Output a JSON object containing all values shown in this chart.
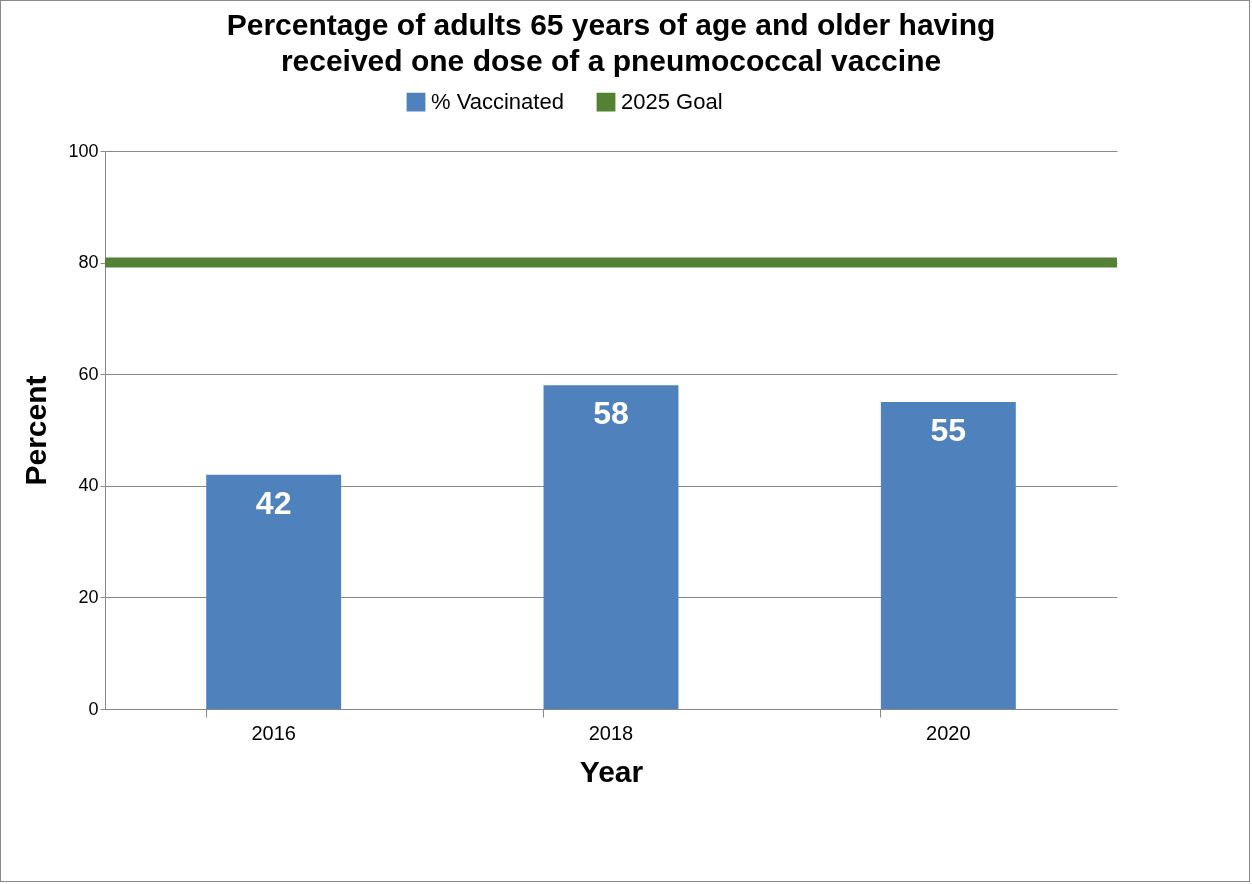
{
  "chart_data": {
    "type": "bar",
    "title": "Percentage of adults 65 years of age and older having received one dose of a pneumococcal vaccine",
    "xlabel": "Year",
    "ylabel": "Percent",
    "categories": [
      "2016",
      "2018",
      "2020"
    ],
    "series": [
      {
        "name": "% Vaccinated",
        "color": "#4f81bd",
        "values": [
          42,
          58,
          55
        ]
      }
    ],
    "ref_lines": [
      {
        "axis": "y",
        "value": 80,
        "label": "2025 Goal",
        "color": "#538135"
      }
    ],
    "ylim": [
      0,
      100
    ],
    "yticks": [
      0,
      20,
      40,
      60,
      80,
      100
    ],
    "grid": "y",
    "legend": "top",
    "data_labels": true
  }
}
